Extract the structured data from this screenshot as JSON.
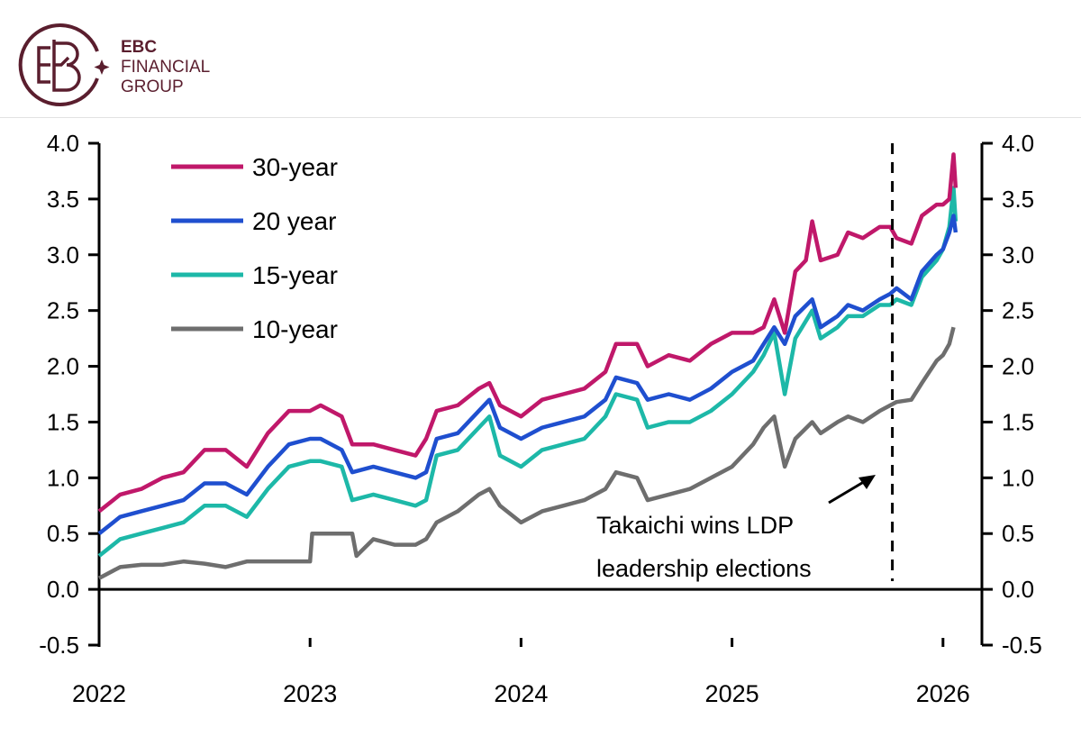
{
  "header": {
    "logo_text": "EBC",
    "brand_line1": "EBC",
    "brand_line2": "FINANCIAL",
    "brand_line3": "GROUP",
    "brand_color": "#5a1e2e"
  },
  "chart_data": {
    "type": "line",
    "title": "",
    "xlabel": "",
    "ylabel": "",
    "xlim": [
      2022,
      2026.15
    ],
    "ylim": [
      -0.5,
      4.0
    ],
    "x_ticks": [
      "2022",
      "2023",
      "2024",
      "2025",
      "2026"
    ],
    "y_ticks": [
      "4.0",
      "3.5",
      "3.0",
      "2.5",
      "2.0",
      "1.5",
      "1.0",
      "0.5",
      "0.0",
      "-0.5"
    ],
    "secondary_y_axis": true,
    "grid": false,
    "legend_placement": "top-left",
    "annotation": {
      "line1": "Takaichi wins LDP",
      "line2": "leadership elections",
      "event_x": 2025.76
    },
    "series": [
      {
        "name": "30-year",
        "color": "#c0186a",
        "x": [
          2022.0,
          2022.1,
          2022.2,
          2022.3,
          2022.4,
          2022.5,
          2022.6,
          2022.7,
          2022.8,
          2022.9,
          2023.0,
          2023.05,
          2023.15,
          2023.2,
          2023.3,
          2023.4,
          2023.5,
          2023.55,
          2023.6,
          2023.7,
          2023.8,
          2023.85,
          2023.9,
          2024.0,
          2024.1,
          2024.2,
          2024.3,
          2024.4,
          2024.45,
          2024.55,
          2024.6,
          2024.7,
          2024.8,
          2024.9,
          2025.0,
          2025.1,
          2025.15,
          2025.2,
          2025.25,
          2025.3,
          2025.35,
          2025.38,
          2025.42,
          2025.5,
          2025.55,
          2025.62,
          2025.7,
          2025.75,
          2025.78,
          2025.85,
          2025.9,
          2025.97,
          2026.0,
          2026.03,
          2026.05,
          2026.06
        ],
        "y": [
          0.7,
          0.85,
          0.9,
          1.0,
          1.05,
          1.25,
          1.25,
          1.1,
          1.4,
          1.6,
          1.6,
          1.65,
          1.55,
          1.3,
          1.3,
          1.25,
          1.2,
          1.35,
          1.6,
          1.65,
          1.8,
          1.85,
          1.65,
          1.55,
          1.7,
          1.75,
          1.8,
          1.95,
          2.2,
          2.2,
          2.0,
          2.1,
          2.05,
          2.2,
          2.3,
          2.3,
          2.35,
          2.6,
          2.3,
          2.85,
          2.95,
          3.3,
          2.95,
          3.0,
          3.2,
          3.15,
          3.25,
          3.25,
          3.15,
          3.1,
          3.35,
          3.45,
          3.45,
          3.5,
          3.9,
          3.6
        ]
      },
      {
        "name": "20 year",
        "color": "#1f4fcf",
        "x": [
          2022.0,
          2022.1,
          2022.2,
          2022.3,
          2022.4,
          2022.5,
          2022.6,
          2022.7,
          2022.8,
          2022.9,
          2023.0,
          2023.05,
          2023.15,
          2023.2,
          2023.3,
          2023.4,
          2023.5,
          2023.55,
          2023.6,
          2023.7,
          2023.8,
          2023.85,
          2023.9,
          2024.0,
          2024.1,
          2024.2,
          2024.3,
          2024.4,
          2024.45,
          2024.55,
          2024.6,
          2024.7,
          2024.8,
          2024.9,
          2025.0,
          2025.1,
          2025.15,
          2025.2,
          2025.25,
          2025.3,
          2025.38,
          2025.42,
          2025.5,
          2025.55,
          2025.62,
          2025.7,
          2025.75,
          2025.78,
          2025.85,
          2025.9,
          2025.97,
          2026.0,
          2026.03,
          2026.05,
          2026.06
        ],
        "y": [
          0.5,
          0.65,
          0.7,
          0.75,
          0.8,
          0.95,
          0.95,
          0.85,
          1.1,
          1.3,
          1.35,
          1.35,
          1.25,
          1.05,
          1.1,
          1.05,
          1.0,
          1.05,
          1.35,
          1.4,
          1.6,
          1.7,
          1.45,
          1.35,
          1.45,
          1.5,
          1.55,
          1.7,
          1.9,
          1.85,
          1.7,
          1.75,
          1.7,
          1.8,
          1.95,
          2.05,
          2.2,
          2.35,
          2.2,
          2.45,
          2.6,
          2.35,
          2.45,
          2.55,
          2.5,
          2.6,
          2.65,
          2.7,
          2.6,
          2.85,
          3.0,
          3.05,
          3.2,
          3.35,
          3.2
        ]
      },
      {
        "name": "15-year",
        "color": "#1db8a8",
        "x": [
          2022.0,
          2022.1,
          2022.2,
          2022.3,
          2022.4,
          2022.5,
          2022.6,
          2022.7,
          2022.8,
          2022.9,
          2023.0,
          2023.05,
          2023.15,
          2023.2,
          2023.3,
          2023.4,
          2023.5,
          2023.55,
          2023.6,
          2023.7,
          2023.8,
          2023.85,
          2023.9,
          2024.0,
          2024.1,
          2024.2,
          2024.3,
          2024.4,
          2024.45,
          2024.55,
          2024.6,
          2024.7,
          2024.8,
          2024.9,
          2025.0,
          2025.1,
          2025.15,
          2025.2,
          2025.25,
          2025.3,
          2025.38,
          2025.42,
          2025.5,
          2025.55,
          2025.62,
          2025.7,
          2025.75,
          2025.78,
          2025.85,
          2025.9,
          2025.97,
          2026.0,
          2026.03,
          2026.05,
          2026.06
        ],
        "y": [
          0.3,
          0.45,
          0.5,
          0.55,
          0.6,
          0.75,
          0.75,
          0.65,
          0.9,
          1.1,
          1.15,
          1.15,
          1.1,
          0.8,
          0.85,
          0.8,
          0.75,
          0.8,
          1.2,
          1.25,
          1.45,
          1.55,
          1.2,
          1.1,
          1.25,
          1.3,
          1.35,
          1.55,
          1.75,
          1.7,
          1.45,
          1.5,
          1.5,
          1.6,
          1.75,
          1.95,
          2.1,
          2.3,
          1.75,
          2.25,
          2.5,
          2.25,
          2.35,
          2.45,
          2.45,
          2.55,
          2.55,
          2.6,
          2.55,
          2.8,
          2.95,
          3.05,
          3.25,
          3.6,
          3.3
        ]
      },
      {
        "name": "10-year",
        "color": "#6e6e6e",
        "x": [
          2022.0,
          2022.1,
          2022.2,
          2022.3,
          2022.4,
          2022.5,
          2022.6,
          2022.7,
          2022.8,
          2022.9,
          2023.0,
          2023.01,
          2023.1,
          2023.2,
          2023.22,
          2023.3,
          2023.4,
          2023.5,
          2023.55,
          2023.6,
          2023.7,
          2023.8,
          2023.85,
          2023.9,
          2024.0,
          2024.1,
          2024.2,
          2024.3,
          2024.4,
          2024.45,
          2024.55,
          2024.6,
          2024.7,
          2024.8,
          2024.9,
          2025.0,
          2025.1,
          2025.15,
          2025.2,
          2025.25,
          2025.3,
          2025.38,
          2025.42,
          2025.5,
          2025.55,
          2025.62,
          2025.7,
          2025.75,
          2025.78,
          2025.85,
          2025.9,
          2025.97,
          2026.0,
          2026.03,
          2026.05
        ],
        "y": [
          0.1,
          0.2,
          0.22,
          0.22,
          0.25,
          0.23,
          0.2,
          0.25,
          0.25,
          0.25,
          0.25,
          0.5,
          0.5,
          0.5,
          0.3,
          0.45,
          0.4,
          0.4,
          0.45,
          0.6,
          0.7,
          0.85,
          0.9,
          0.75,
          0.6,
          0.7,
          0.75,
          0.8,
          0.9,
          1.05,
          1.0,
          0.8,
          0.85,
          0.9,
          1.0,
          1.1,
          1.3,
          1.45,
          1.55,
          1.1,
          1.35,
          1.5,
          1.4,
          1.5,
          1.55,
          1.5,
          1.6,
          1.65,
          1.68,
          1.7,
          1.85,
          2.05,
          2.1,
          2.2,
          2.35
        ]
      }
    ]
  }
}
